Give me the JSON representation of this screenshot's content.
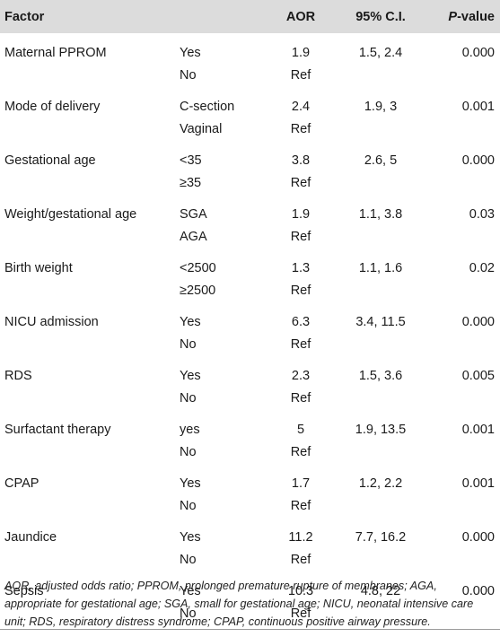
{
  "table": {
    "headers": {
      "factor": "Factor",
      "level": "",
      "aor": "AOR",
      "ci": "95% C.I.",
      "p_italic": "P",
      "p_rest": "-value"
    },
    "rows": [
      {
        "factor": "Maternal PPROM",
        "level": "Yes",
        "aor": "1.9",
        "ci": "1.5, 2.4",
        "p": "0.000"
      },
      {
        "factor": "",
        "level": "No",
        "aor": "Ref",
        "ci": "",
        "p": ""
      },
      {
        "factor": "Mode of delivery",
        "level": "C-section",
        "aor": "2.4",
        "ci": "1.9, 3",
        "p": "0.001"
      },
      {
        "factor": "",
        "level": "Vaginal",
        "aor": "Ref",
        "ci": "",
        "p": ""
      },
      {
        "factor": "Gestational age",
        "level": "<35",
        "aor": "3.8",
        "ci": "2.6, 5",
        "p": "0.000"
      },
      {
        "factor": "",
        "level": "≥35",
        "aor": "Ref",
        "ci": "",
        "p": ""
      },
      {
        "factor": "Weight/gestational age",
        "level": "SGA",
        "aor": "1.9",
        "ci": "1.1, 3.8",
        "p": "0.03"
      },
      {
        "factor": "",
        "level": "AGA",
        "aor": "Ref",
        "ci": "",
        "p": ""
      },
      {
        "factor": "Birth weight",
        "level": "<2500",
        "aor": "1.3",
        "ci": "1.1, 1.6",
        "p": "0.02"
      },
      {
        "factor": "",
        "level": "≥2500",
        "aor": "Ref",
        "ci": "",
        "p": ""
      },
      {
        "factor": "NICU admission",
        "level": "Yes",
        "aor": "6.3",
        "ci": "3.4, 11.5",
        "p": "0.000"
      },
      {
        "factor": "",
        "level": "No",
        "aor": "Ref",
        "ci": "",
        "p": ""
      },
      {
        "factor": "RDS",
        "level": "Yes",
        "aor": "2.3",
        "ci": "1.5, 3.6",
        "p": "0.005"
      },
      {
        "factor": "",
        "level": "No",
        "aor": "Ref",
        "ci": "",
        "p": ""
      },
      {
        "factor": "Surfactant therapy",
        "level": "yes",
        "aor": "5",
        "ci": "1.9, 13.5",
        "p": "0.001"
      },
      {
        "factor": "",
        "level": "No",
        "aor": "Ref",
        "ci": "",
        "p": ""
      },
      {
        "factor": "CPAP",
        "level": "Yes",
        "aor": "1.7",
        "ci": "1.2, 2.2",
        "p": "0.001"
      },
      {
        "factor": "",
        "level": "No",
        "aor": "Ref",
        "ci": "",
        "p": ""
      },
      {
        "factor": "Jaundice",
        "level": "Yes",
        "aor": "11.2",
        "ci": "7.7, 16.2",
        "p": "0.000"
      },
      {
        "factor": "",
        "level": "No",
        "aor": "Ref",
        "ci": "",
        "p": ""
      },
      {
        "factor": "Sepsis",
        "level": "Yes",
        "aor": "10.3",
        "ci": "4.8, 22",
        "p": "0.000"
      },
      {
        "factor": "",
        "level": "No",
        "aor": "Ref",
        "ci": "",
        "p": ""
      }
    ]
  },
  "footnote": "AOR, adjusted odds ratio; PPROM, prolonged premature rupture of membranes; AGA, appropriate for gestational age; SGA, small for gestational age; NICU, neonatal intensive care unit; RDS, respiratory distress syndrome; CPAP, continuous positive airway pressure.",
  "colors": {
    "header_bg": "#dcdcdc",
    "rule": "#9a9a9a"
  }
}
